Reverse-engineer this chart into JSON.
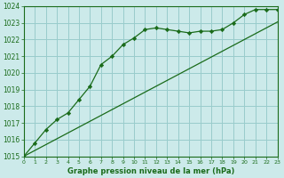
{
  "xlabel": "Graphe pression niveau de la mer (hPa)",
  "hours": [
    0,
    1,
    2,
    3,
    4,
    5,
    6,
    7,
    8,
    9,
    10,
    11,
    12,
    13,
    14,
    15,
    16,
    17,
    18,
    19,
    20,
    21,
    22,
    23
  ],
  "pressure_markers": [
    1015.0,
    1015.8,
    1016.6,
    1017.2,
    1017.6,
    1018.4,
    1019.2,
    1020.5,
    1021.0,
    1021.7,
    1022.1,
    1022.6,
    1022.7,
    1022.6,
    1022.5,
    1022.4,
    1022.5,
    1022.5,
    1022.6,
    1023.0,
    1023.5,
    1023.8,
    1023.8,
    1023.8
  ],
  "pressure_smooth": [
    1015.0,
    1015.35,
    1015.7,
    1016.05,
    1016.4,
    1016.75,
    1017.1,
    1017.45,
    1017.8,
    1018.15,
    1018.5,
    1018.85,
    1019.2,
    1019.55,
    1019.9,
    1020.25,
    1020.6,
    1020.95,
    1021.3,
    1021.65,
    1022.0,
    1022.35,
    1022.7,
    1023.05
  ],
  "line_color": "#1a6b1a",
  "bg_color": "#cceaea",
  "grid_color": "#99cccc",
  "text_color": "#1a6b1a",
  "ylim_min": 1015,
  "ylim_max": 1024,
  "xlim_min": 0,
  "xlim_max": 23
}
